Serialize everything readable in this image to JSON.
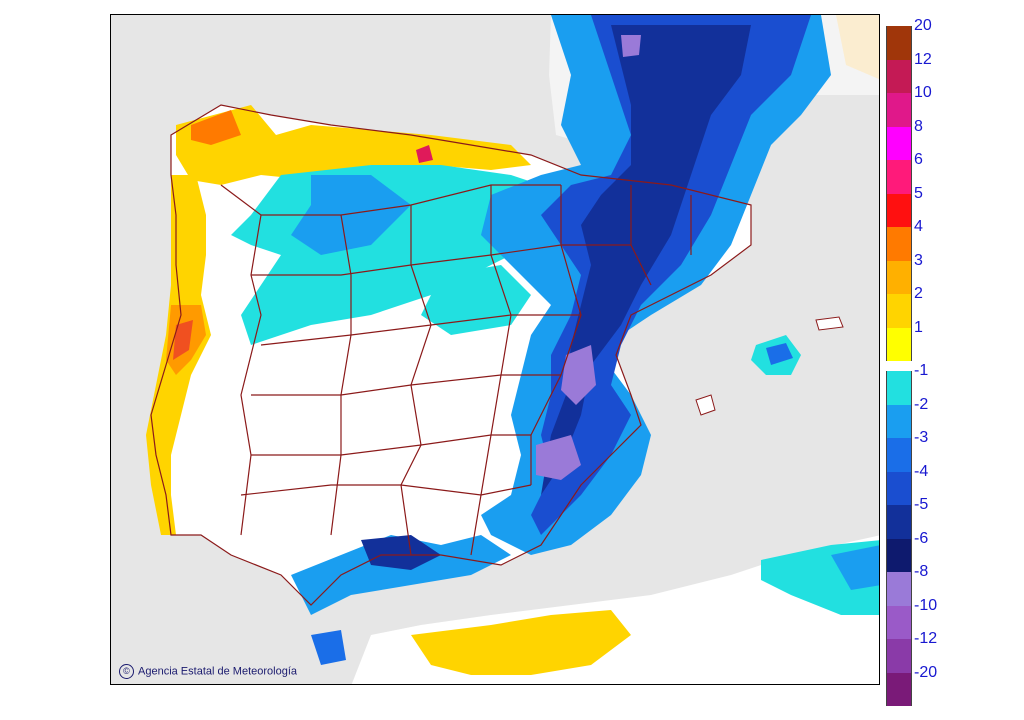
{
  "map": {
    "credit": "Agencia Estatal de Meteorología",
    "credit_symbol": "©",
    "colors": {
      "sea": "#e6e6e6",
      "borders": "#8b1a1a"
    }
  },
  "legend": {
    "positive": [
      {
        "label": "20",
        "color": "#a0360a"
      },
      {
        "label": "12",
        "color": "#c41a55"
      },
      {
        "label": "10",
        "color": "#e0188a"
      },
      {
        "label": "8",
        "color": "#ff00ff"
      },
      {
        "label": "6",
        "color": "#ff1a7a"
      },
      {
        "label": "5",
        "color": "#ff1010"
      },
      {
        "label": "4",
        "color": "#ff7a00"
      },
      {
        "label": "3",
        "color": "#ffb000"
      },
      {
        "label": "2",
        "color": "#ffd400"
      },
      {
        "label": "1",
        "color": "#ffff00"
      }
    ],
    "negative": [
      {
        "label": "-1",
        "color": "#22e0e0"
      },
      {
        "label": "-2",
        "color": "#1a9ef0"
      },
      {
        "label": "-3",
        "color": "#1a6ee8"
      },
      {
        "label": "-4",
        "color": "#1a4ed0"
      },
      {
        "label": "-5",
        "color": "#12309a"
      },
      {
        "label": "-6",
        "color": "#0e1a6e"
      },
      {
        "label": "-8",
        "color": "#9a7ad8"
      },
      {
        "label": "-10",
        "color": "#9a5ac8"
      },
      {
        "label": "-12",
        "color": "#8a3aa8"
      },
      {
        "label": "-20",
        "color": "#7a1a78"
      }
    ]
  }
}
